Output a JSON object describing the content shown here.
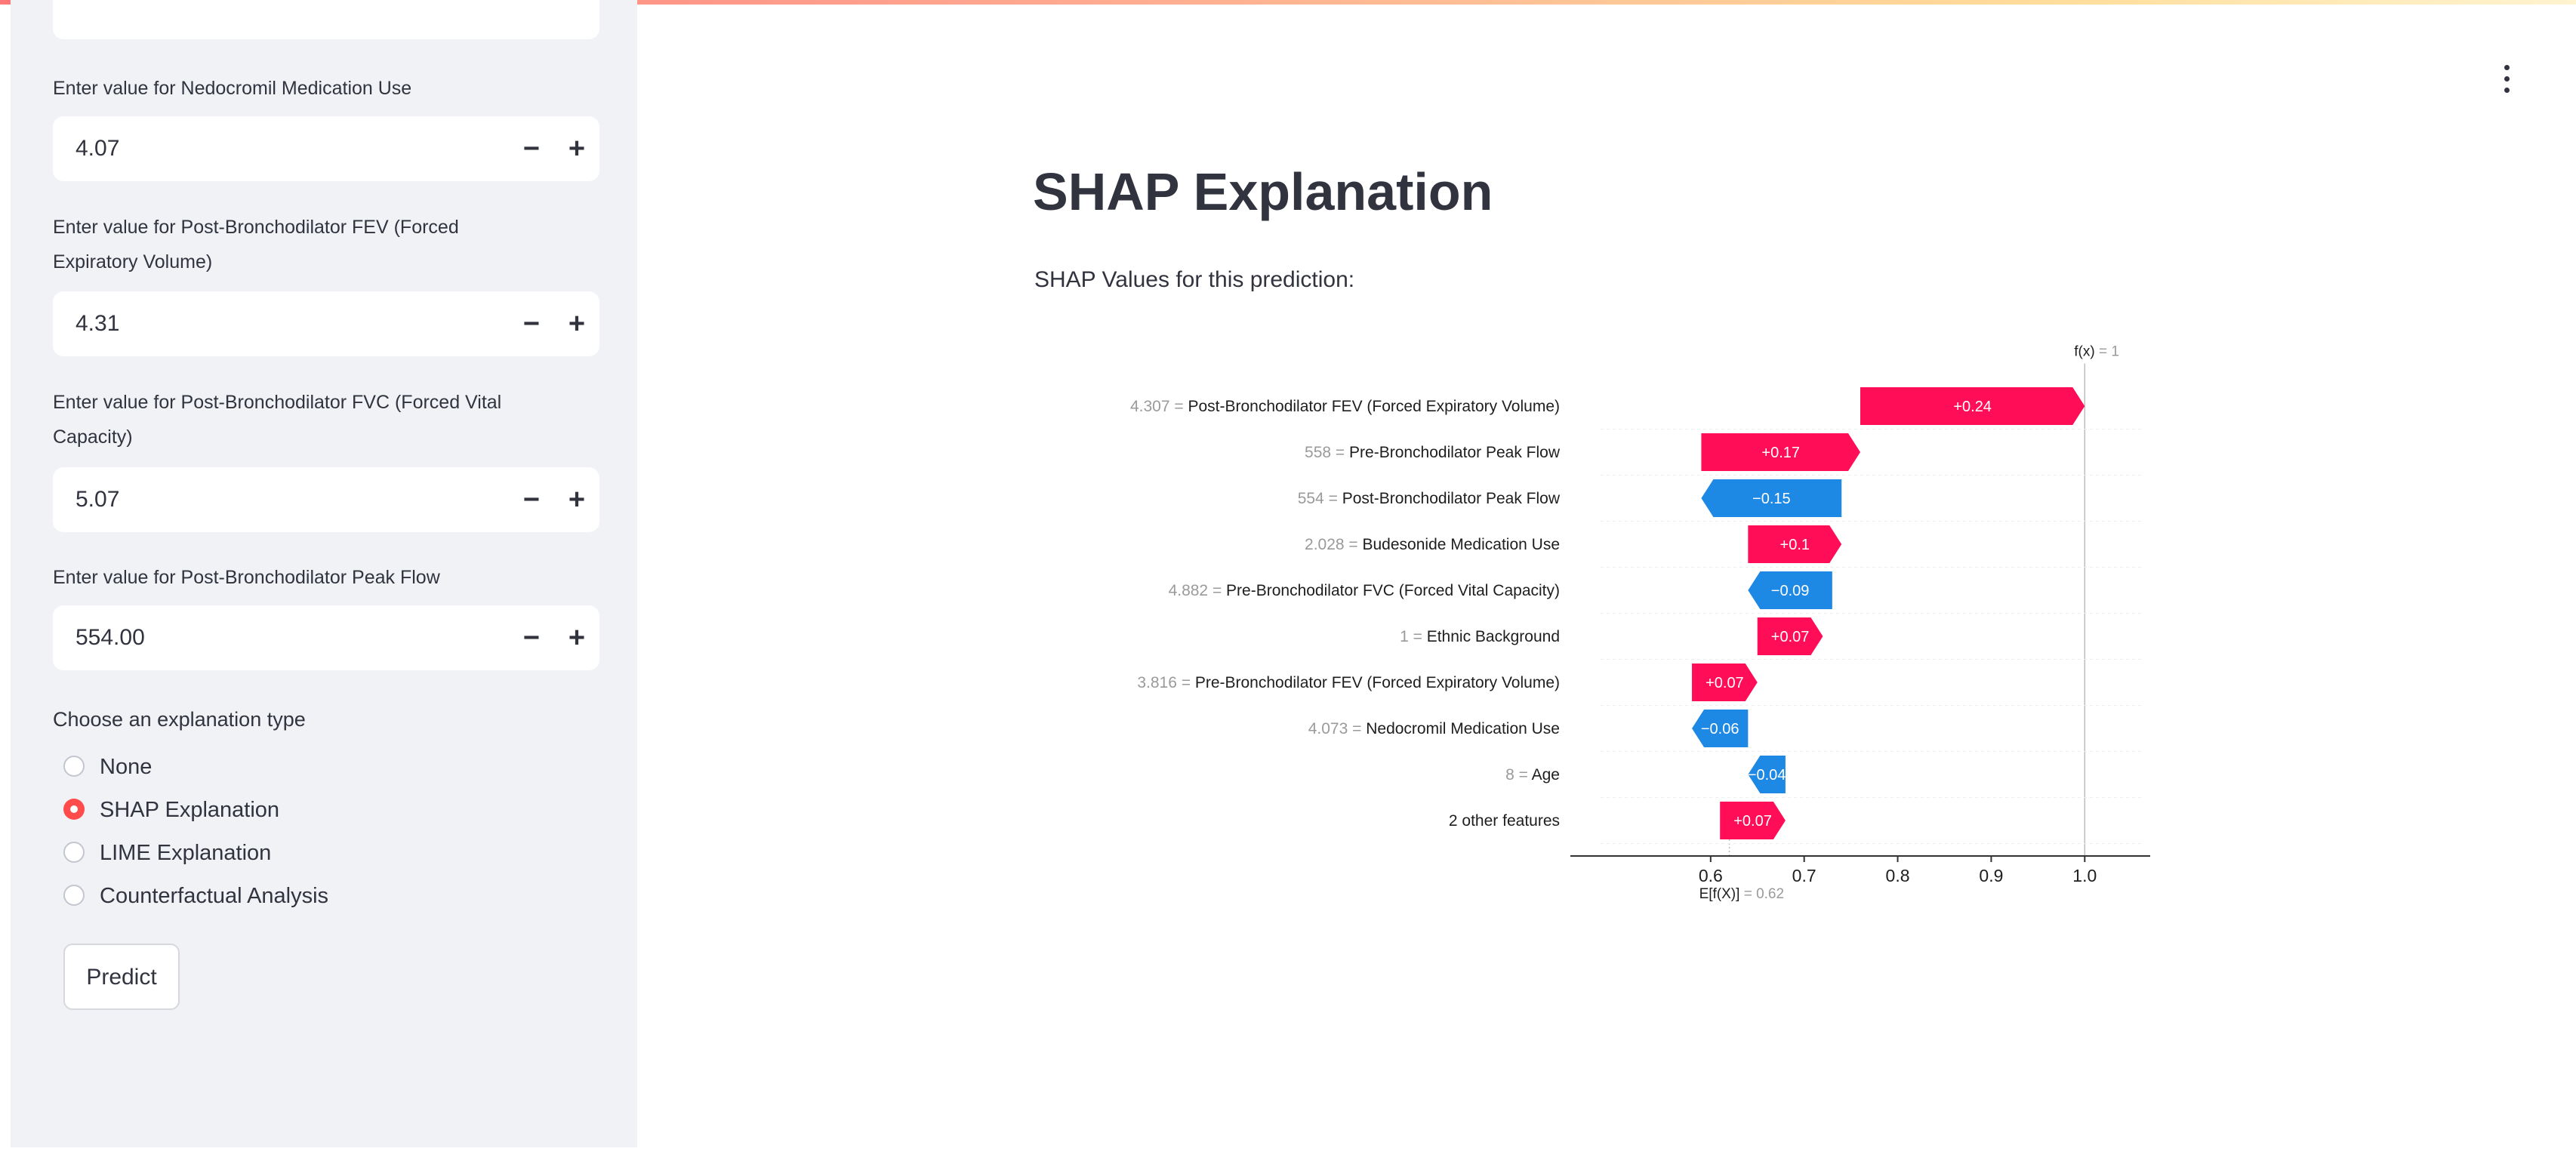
{
  "sidebar": {
    "fields": [
      {
        "label_lines": [
          "Enter value for Nedocromil Medication Use"
        ],
        "value": "4.07"
      },
      {
        "label_lines": [
          "Enter value for Post-Bronchodilator FEV (Forced",
          "Expiratory Volume)"
        ],
        "value": "4.31"
      },
      {
        "label_lines": [
          "Enter value for Post-Bronchodilator FVC (Forced Vital",
          "Capacity)"
        ],
        "value": "5.07"
      },
      {
        "label_lines": [
          "Enter value for Post-Bronchodilator Peak Flow"
        ],
        "value": "554.00"
      }
    ],
    "stepper_minus": "−",
    "stepper_plus": "+",
    "explanation_label": "Choose an explanation type",
    "options": [
      "None",
      "SHAP Explanation",
      "LIME Explanation",
      "Counterfactual Analysis"
    ],
    "selected_option": "SHAP Explanation",
    "predict_label": "Predict"
  },
  "main": {
    "title": "SHAP Explanation",
    "subtitle": "SHAP Values for this prediction:"
  },
  "colors": {
    "positive": "#ff0d57",
    "negative": "#1e88e5",
    "accent": "#ff4b4b",
    "sidebar_bg": "#f0f2f6"
  },
  "chart_data": {
    "type": "waterfall",
    "title": "",
    "base_value": 0.62,
    "base_label": "E[f(X)] = 0.62",
    "output_value": 1,
    "output_label": "f(x) = 1",
    "xlim": [
      0.45,
      1.07
    ],
    "xticks": [
      0.6,
      0.7,
      0.8,
      0.9,
      1.0
    ],
    "xtick_labels": [
      "0.6",
      "0.7",
      "0.8",
      "0.9",
      "1.0"
    ],
    "features": [
      {
        "value": "4.307",
        "name": "Post-Bronchodilator FEV (Forced Expiratory Volume)",
        "shap": 0.24,
        "start": 0.76,
        "end": 1.0,
        "label": "+0.24"
      },
      {
        "value": "558",
        "name": "Pre-Bronchodilator Peak Flow",
        "shap": 0.17,
        "start": 0.59,
        "end": 0.76,
        "label": "+0.17"
      },
      {
        "value": "554",
        "name": "Post-Bronchodilator Peak Flow",
        "shap": -0.15,
        "start": 0.74,
        "end": 0.59,
        "label": "−0.15"
      },
      {
        "value": "2.028",
        "name": "Budesonide Medication Use",
        "shap": 0.1,
        "start": 0.64,
        "end": 0.74,
        "label": "+0.1"
      },
      {
        "value": "4.882",
        "name": "Pre-Bronchodilator FVC (Forced Vital Capacity)",
        "shap": -0.09,
        "start": 0.73,
        "end": 0.64,
        "label": "−0.09"
      },
      {
        "value": "1",
        "name": "Ethnic Background",
        "shap": 0.07,
        "start": 0.65,
        "end": 0.72,
        "label": "+0.07"
      },
      {
        "value": "3.816",
        "name": "Pre-Bronchodilator FEV (Forced Expiratory Volume)",
        "shap": 0.07,
        "start": 0.58,
        "end": 0.65,
        "label": "+0.07"
      },
      {
        "value": "4.073",
        "name": "Nedocromil Medication Use",
        "shap": -0.06,
        "start": 0.64,
        "end": 0.58,
        "label": "−0.06"
      },
      {
        "value": "8",
        "name": "Age",
        "shap": -0.04,
        "start": 0.68,
        "end": 0.64,
        "label": "−0.04"
      },
      {
        "value": "",
        "name": "2 other features",
        "shap": 0.07,
        "start": 0.61,
        "end": 0.68,
        "label": "+0.07"
      }
    ]
  }
}
